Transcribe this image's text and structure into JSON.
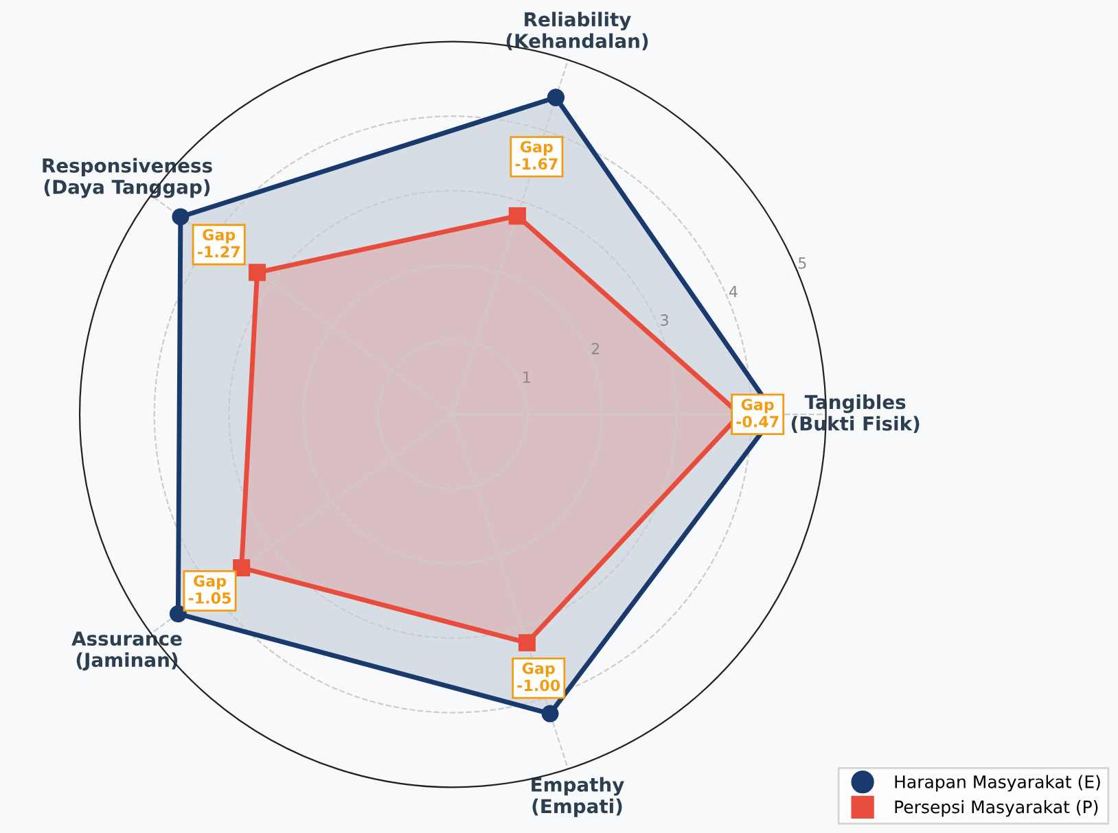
{
  "chart_data": {
    "type": "radar",
    "categories": [
      "Reliability\n(Kehandalan)",
      "Tangibles\n(Bukti Fisik)",
      "Empathy\n(Empati)",
      "Assurance\n(Jaminan)",
      "Responsiveness\n(Daya Tanggap)"
    ],
    "series": [
      {
        "name": "Harapan Masyarakat (E)",
        "color": "#1a3a6e",
        "marker": "circle",
        "values": [
          4.47,
          4.32,
          4.22,
          4.55,
          4.51
        ]
      },
      {
        "name": "Persepsi Masyarakat (P)",
        "color": "#e74c3c",
        "marker": "square",
        "values": [
          2.8,
          3.85,
          3.22,
          3.5,
          3.24
        ]
      }
    ],
    "ylim": [
      0,
      5
    ],
    "yticks": [
      1,
      2,
      3,
      4,
      5
    ],
    "grid": true,
    "legend": "bottom right",
    "annotations": [
      {
        "text": "Gap\n-1.67",
        "x": "Reliability\n(Kehandalan)"
      },
      {
        "text": "Gap\n-0.47",
        "x": "Tangibles\n(Bukti Fisik)"
      },
      {
        "text": "Gap\n-1.00",
        "x": "Empathy\n(Empati)"
      },
      {
        "text": "Gap\n-1.05",
        "x": "Assurance\n(Jaminan)"
      },
      {
        "text": "Gap\n-1.27",
        "x": "Responsiveness\n(Daya Tanggap)"
      }
    ]
  }
}
